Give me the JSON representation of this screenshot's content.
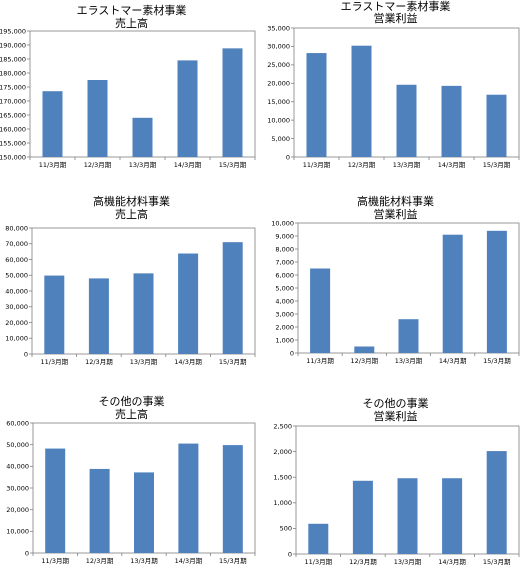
{
  "chart_data": [
    {
      "type": "bar",
      "title_lines": [
        "エラストマー素材事業",
        "売上高"
      ],
      "categories": [
        "11/3月期",
        "12/3月期",
        "13/3月期",
        "14/3月期",
        "15/3月期"
      ],
      "values": [
        173500,
        177500,
        164000,
        184500,
        188800
      ],
      "ylim": [
        150000,
        195000
      ],
      "yticks": [
        150000,
        155000,
        160000,
        165000,
        170000,
        175000,
        180000,
        185000,
        190000,
        195000
      ],
      "ytick_labels": [
        "150,000",
        "155,000",
        "160,000",
        "165,000",
        "170,000",
        "175,000",
        "180,000",
        "185,000",
        "190,000",
        "195,000"
      ],
      "grid": false,
      "bar_color": "#4f81bd"
    },
    {
      "type": "bar",
      "title_lines": [
        "エラストマー素材事業",
        "営業利益"
      ],
      "categories": [
        "11/3月期",
        "12/3月期",
        "13/3月期",
        "14/3月期",
        "15/3月期"
      ],
      "values": [
        28200,
        30200,
        19600,
        19300,
        16900
      ],
      "ylim": [
        0,
        35000
      ],
      "yticks": [
        0,
        5000,
        10000,
        15000,
        20000,
        25000,
        30000,
        35000
      ],
      "ytick_labels": [
        "0",
        "5,000",
        "10,000",
        "15,000",
        "20,000",
        "25,000",
        "30,000",
        "35,000"
      ],
      "grid": false,
      "bar_color": "#4f81bd"
    },
    {
      "type": "bar",
      "title_lines": [
        "高機能材料事業",
        "売上高"
      ],
      "categories": [
        "11/3月期",
        "12/3月期",
        "13/3月期",
        "14/3月期",
        "15/3月期"
      ],
      "values": [
        49800,
        48000,
        51200,
        63800,
        71000
      ],
      "ylim": [
        0,
        80000
      ],
      "yticks": [
        0,
        10000,
        20000,
        30000,
        40000,
        50000,
        60000,
        70000,
        80000
      ],
      "ytick_labels": [
        "0",
        "10,000",
        "20,000",
        "30,000",
        "40,000",
        "50,000",
        "60,000",
        "70,000",
        "80,000"
      ],
      "grid": false,
      "bar_color": "#4f81bd"
    },
    {
      "type": "bar",
      "title_lines": [
        "高機能材料事業",
        "営業利益"
      ],
      "categories": [
        "11/3月期",
        "12/3月期",
        "13/3月期",
        "14/3月期",
        "15/3月期"
      ],
      "values": [
        6500,
        500,
        2600,
        9100,
        9400
      ],
      "ylim": [
        0,
        10000
      ],
      "yticks": [
        0,
        1000,
        2000,
        3000,
        4000,
        5000,
        6000,
        7000,
        8000,
        9000,
        10000
      ],
      "ytick_labels": [
        "0",
        "1,000",
        "2,000",
        "3,000",
        "4,000",
        "5,000",
        "6,000",
        "7,000",
        "8,000",
        "9,000",
        "10,000"
      ],
      "grid": false,
      "bar_color": "#4f81bd"
    },
    {
      "type": "bar",
      "title_lines": [
        "その他の事業",
        "売上高"
      ],
      "categories": [
        "11/3月期",
        "12/3月期",
        "13/3月期",
        "14/3月期",
        "15/3月期"
      ],
      "values": [
        48200,
        38800,
        37200,
        50500,
        49800
      ],
      "ylim": [
        0,
        60000
      ],
      "yticks": [
        0,
        10000,
        20000,
        30000,
        40000,
        50000,
        60000
      ],
      "ytick_labels": [
        "0",
        "10,000",
        "20,000",
        "30,000",
        "40,000",
        "50,000",
        "60,000"
      ],
      "grid": false,
      "bar_color": "#4f81bd"
    },
    {
      "type": "bar",
      "title_lines": [
        "その他の事業",
        "営業利益"
      ],
      "categories": [
        "11/3月期",
        "12/3月期",
        "13/3月期",
        "14/3月期",
        "15/3月期"
      ],
      "values": [
        590,
        1430,
        1480,
        1480,
        2010
      ],
      "ylim": [
        0,
        2500
      ],
      "yticks": [
        0,
        500,
        1000,
        1500,
        2000,
        2500
      ],
      "ytick_labels": [
        "0",
        "500",
        "1,000",
        "1,500",
        "2,000",
        "2,500"
      ],
      "grid": false,
      "bar_color": "#4f81bd"
    }
  ]
}
